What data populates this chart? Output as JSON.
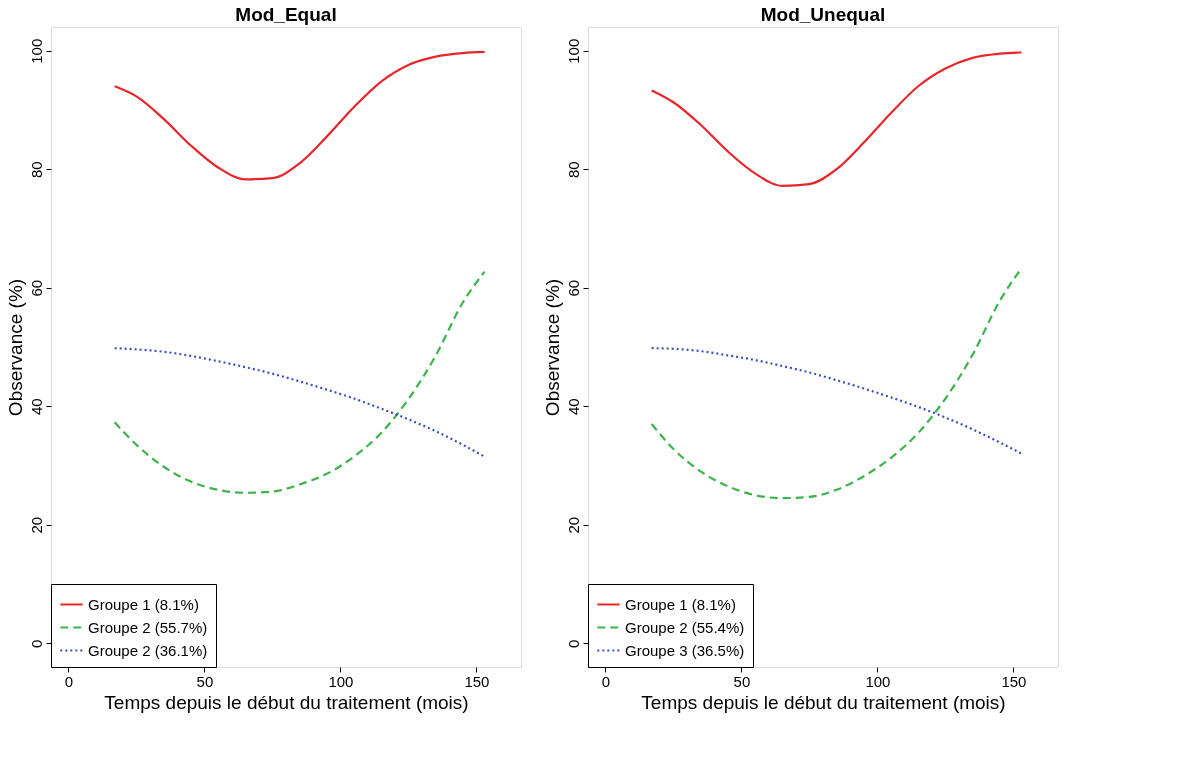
{
  "chart_data": [
    {
      "type": "line",
      "title": "Mod_Equal",
      "xlabel": "Temps depuis le début du traitement (mois)",
      "ylabel": "Observance (%)",
      "x": [
        17,
        25,
        35,
        45,
        55,
        65,
        75,
        85,
        95,
        105,
        115,
        125,
        135,
        145,
        153
      ],
      "series": [
        {
          "name": "Groupe 1 (8.1%)",
          "color": "#e8262a",
          "line_style": "solid",
          "values": [
            94,
            92.3,
            88.5,
            84,
            80.3,
            78.3,
            78.5,
            81,
            85.5,
            90.5,
            94.8,
            97.6,
            99,
            99.6,
            99.8
          ]
        },
        {
          "name": "Groupe 2 (55.7%)",
          "color": "#3cb44b",
          "line_style": "dashed",
          "values": [
            37.3,
            33.5,
            29.8,
            27.3,
            25.9,
            25.4,
            25.6,
            26.8,
            28.6,
            31.5,
            35.5,
            41.2,
            48.5,
            57.5,
            62.7
          ]
        },
        {
          "name": "Groupe 2 (36.1%)",
          "color": "#3b4fbf",
          "line_style": "dotted",
          "values": [
            49.8,
            49.6,
            49.2,
            48.5,
            47.6,
            46.6,
            45.5,
            44.2,
            42.8,
            41.3,
            39.6,
            37.8,
            35.8,
            33.5,
            31.5
          ]
        }
      ],
      "xlim": [
        -6.4,
        166.4
      ],
      "xticks": [
        0,
        50,
        100,
        150
      ],
      "ylim": [
        -4,
        104
      ],
      "yticks": [
        0,
        20,
        40,
        60,
        80,
        100
      ],
      "grid": false,
      "legend": "bottom left"
    },
    {
      "type": "line",
      "title": "Mod_Unequal",
      "xlabel": "Temps depuis le début du traitement (mois)",
      "ylabel": "Observance (%)",
      "x": [
        17,
        25,
        35,
        45,
        55,
        65,
        75,
        85,
        95,
        105,
        115,
        125,
        135,
        145,
        153
      ],
      "series": [
        {
          "name": "Groupe 1 (8.1%)",
          "color": "#e8262a",
          "line_style": "solid",
          "values": [
            93.3,
            91.3,
            87.5,
            83,
            79.3,
            77.2,
            77.5,
            80,
            84.5,
            89.5,
            94,
            97,
            98.8,
            99.5,
            99.7
          ]
        },
        {
          "name": "Groupe 2 (55.4%)",
          "color": "#3cb44b",
          "line_style": "dashed",
          "values": [
            37,
            32.8,
            29,
            26.5,
            25,
            24.5,
            24.7,
            25.9,
            28.2,
            31.3,
            35.5,
            41.3,
            48.7,
            57.8,
            63.3
          ]
        },
        {
          "name": "Groupe 3 (36.5%)",
          "color": "#3b4fbf",
          "line_style": "dotted",
          "values": [
            49.8,
            49.7,
            49.3,
            48.6,
            47.8,
            46.8,
            45.7,
            44.4,
            43,
            41.5,
            39.9,
            38.1,
            36.1,
            33.9,
            32
          ]
        }
      ],
      "xlim": [
        -6.4,
        166.4
      ],
      "xticks": [
        0,
        50,
        100,
        150
      ],
      "ylim": [
        -4,
        104
      ],
      "yticks": [
        0,
        20,
        40,
        60,
        80,
        100
      ],
      "grid": false,
      "legend": "bottom left"
    }
  ]
}
